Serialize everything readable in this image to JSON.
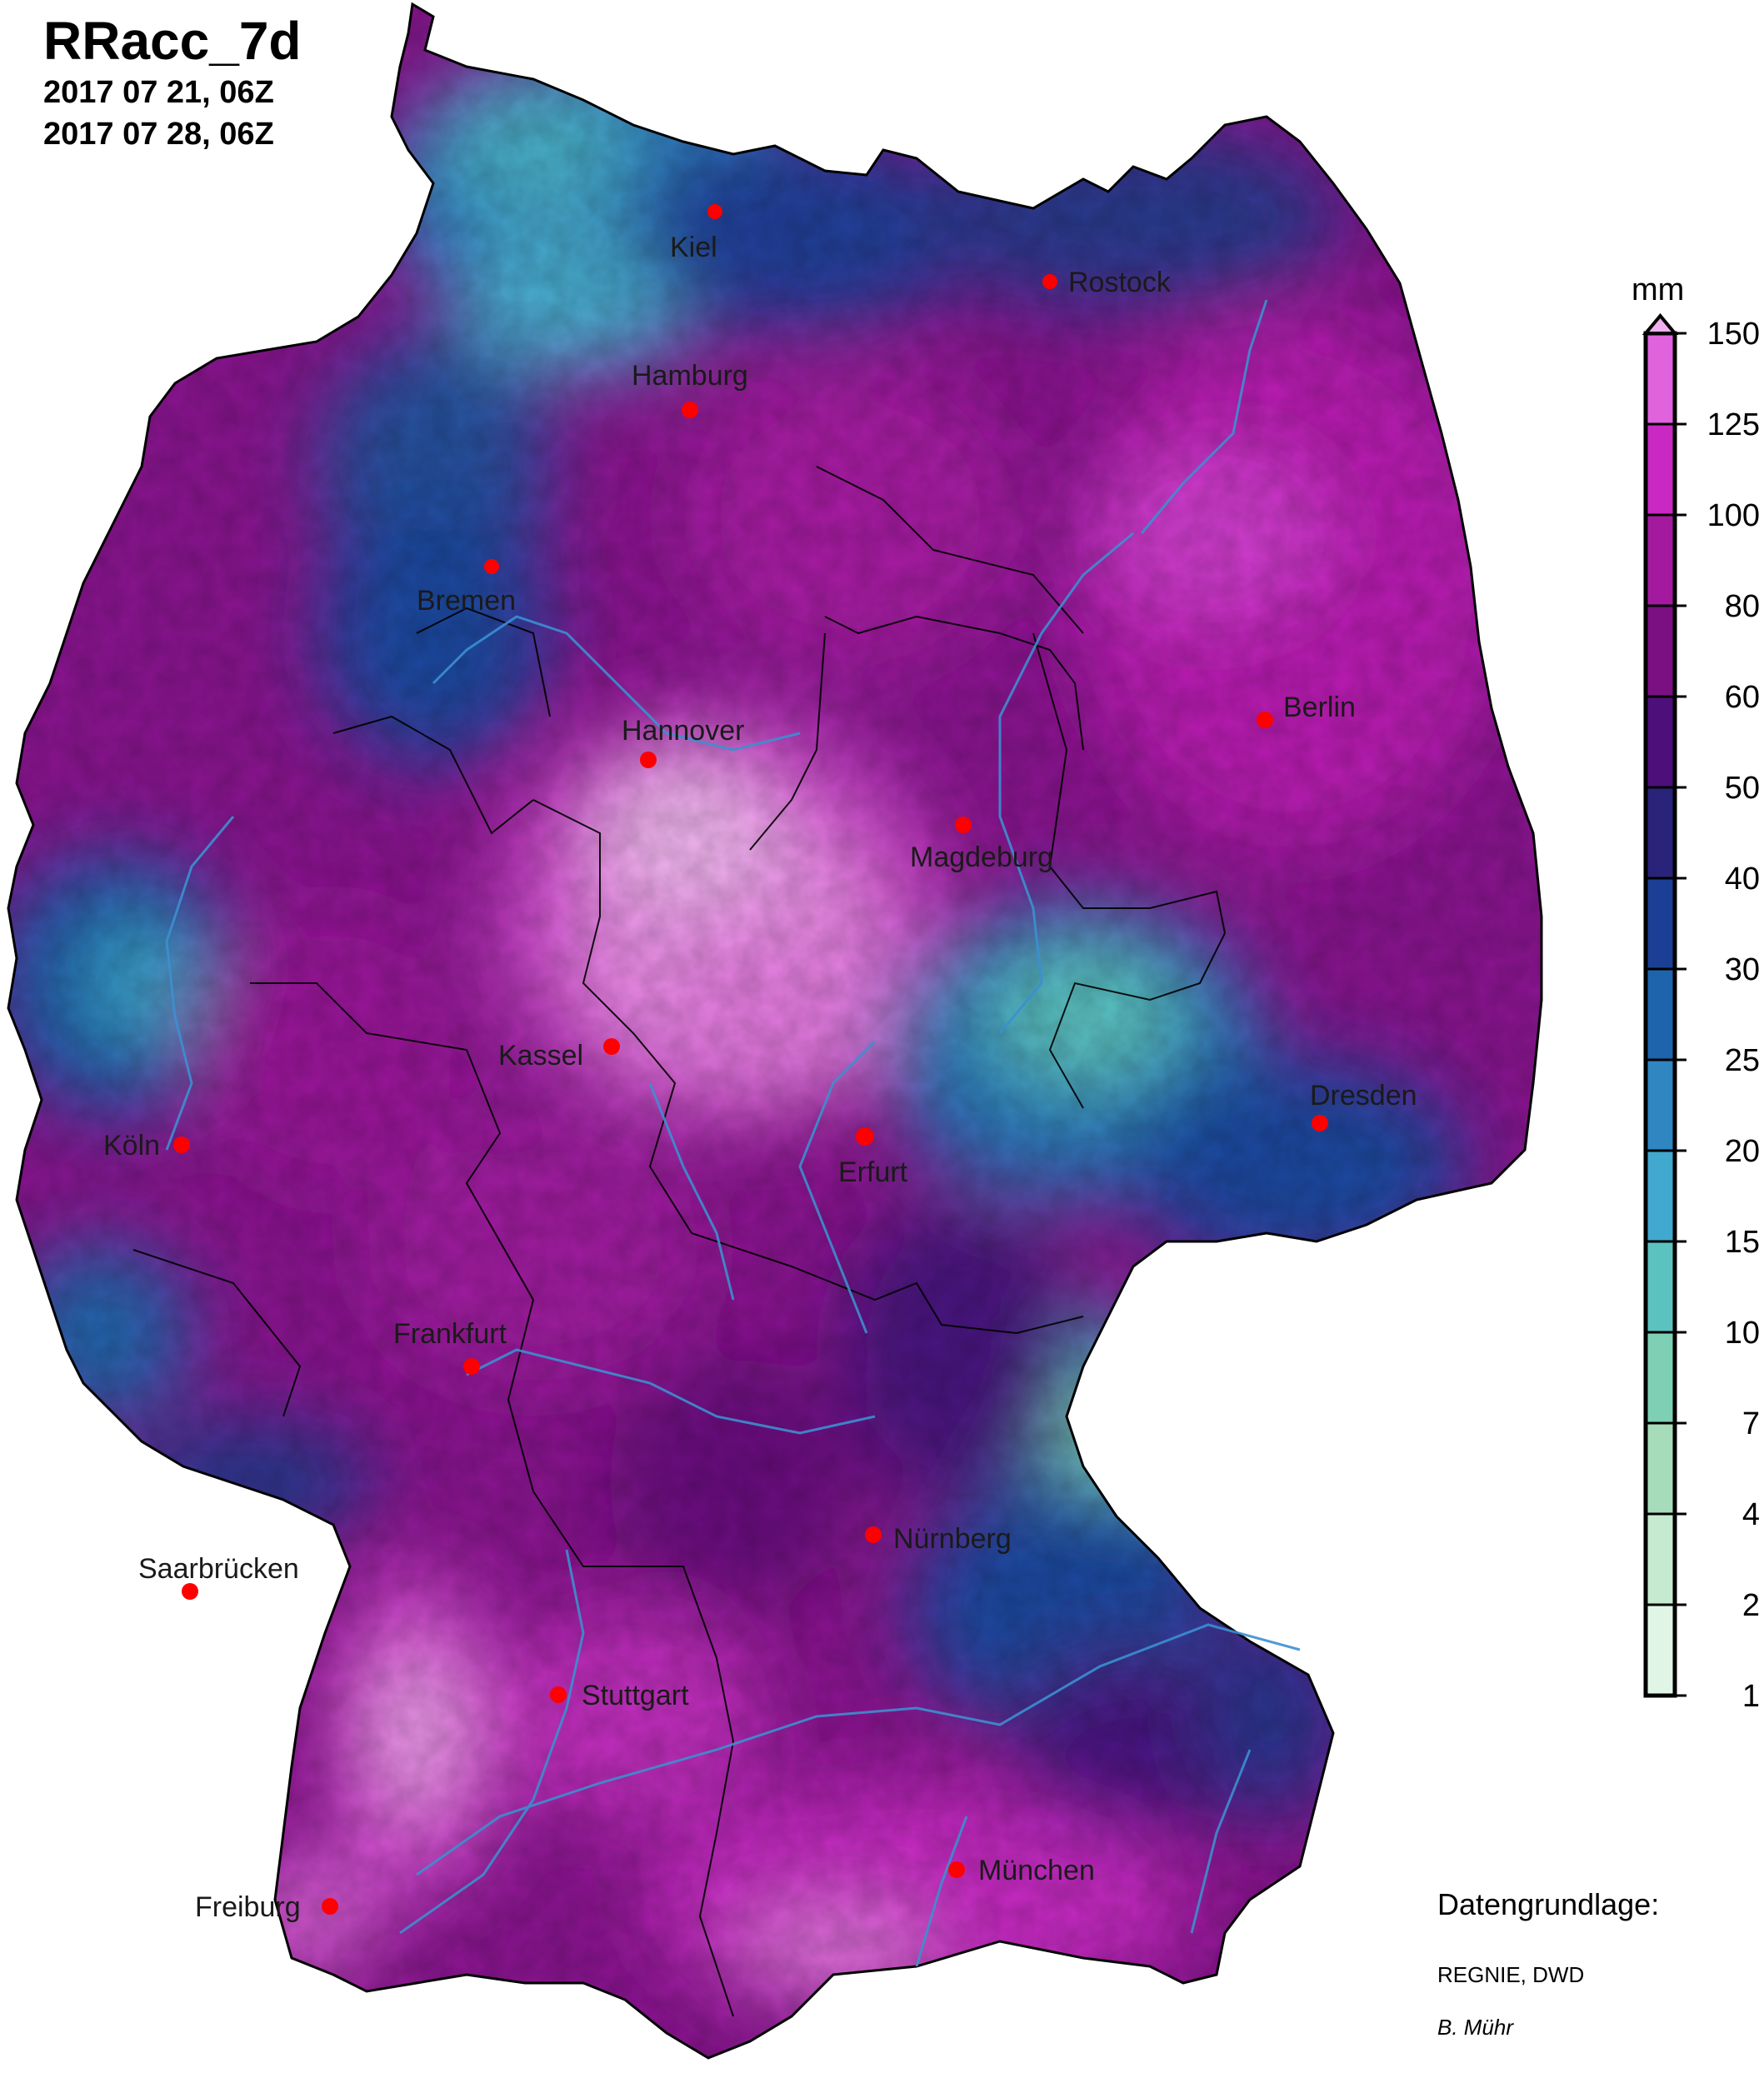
{
  "header": {
    "title": "RRacc_7d",
    "period_start": "2017 07 21, 06Z",
    "period_end": "2017 07 28, 06Z"
  },
  "legend": {
    "unit": "mm",
    "levels": [
      "1",
      "2",
      "4",
      "7",
      "10",
      "15",
      "20",
      "25",
      "30",
      "40",
      "50",
      "60",
      "80",
      "100",
      "125",
      "150"
    ],
    "colors": [
      "#e0f5e6",
      "#c6ead0",
      "#a6dcb9",
      "#7dd0b3",
      "#5cc2c0",
      "#41a8cf",
      "#2f86c1",
      "#1e64ad",
      "#1b3f94",
      "#2a237a",
      "#4d0f7a",
      "#7b1082",
      "#a31a9e",
      "#c928c2",
      "#e062dd"
    ],
    "overflow_color": "#f0b0ee"
  },
  "cities": [
    {
      "name": "Kiel",
      "color": "#ff0000"
    },
    {
      "name": "Rostock",
      "color": "#ff0000"
    },
    {
      "name": "Hamburg",
      "color": "#ff0000"
    },
    {
      "name": "Bremen",
      "color": "#ff0000"
    },
    {
      "name": "Hannover",
      "color": "#ff0000"
    },
    {
      "name": "Berlin",
      "color": "#ff0000"
    },
    {
      "name": "Magdeburg",
      "color": "#ff0000"
    },
    {
      "name": "Kassel",
      "color": "#ff0000"
    },
    {
      "name": "Köln",
      "color": "#ff0000"
    },
    {
      "name": "Erfurt",
      "color": "#ff0000"
    },
    {
      "name": "Dresden",
      "color": "#ff0000"
    },
    {
      "name": "Frankfurt",
      "color": "#ff0000"
    },
    {
      "name": "Nürnberg",
      "color": "#ff0000"
    },
    {
      "name": "Saarbrücken",
      "color": "#ff0000"
    },
    {
      "name": "Stuttgart",
      "color": "#ff0000"
    },
    {
      "name": "Freiburg",
      "color": "#ff0000"
    },
    {
      "name": "München",
      "color": "#ff0000"
    }
  ],
  "credits": {
    "data_heading": "Datengrundlage:",
    "data_source": "REGNIE, DWD",
    "author": "B. Mühr"
  }
}
